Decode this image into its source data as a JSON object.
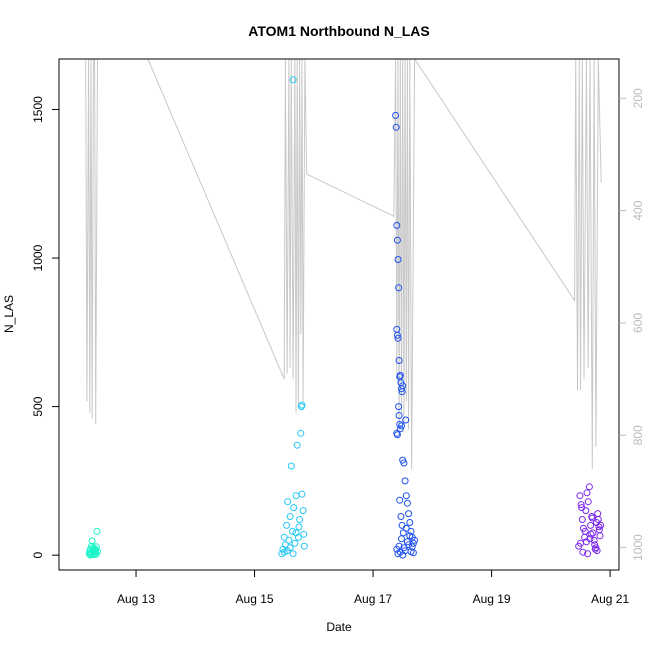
{
  "chart_data": {
    "type": "scatter",
    "title": "ATOM1 Northbound N_LAS",
    "xlabel": "Date",
    "ylabel": "N_LAS",
    "x_ticks": [
      "Aug 13",
      "Aug 15",
      "Aug 17",
      "Aug 19",
      "Aug 21"
    ],
    "x_tick_days": [
      13,
      15,
      17,
      19,
      21
    ],
    "xlim_days": [
      11.7,
      21.15
    ],
    "y_ticks": [
      0,
      500,
      1000,
      1500
    ],
    "ylim": [
      -50,
      1670
    ],
    "y2_ticks": [
      "200",
      "400",
      "600",
      "800",
      "1000"
    ],
    "y2_values": [
      200,
      400,
      600,
      800,
      1000
    ],
    "y2lim": [
      1040,
      130
    ],
    "grid": false,
    "colors": {
      "day12": "#19f5c8",
      "day15": "#25c8f5",
      "day17": "#1e50f0",
      "day20": "#7a28ee",
      "line": "#c8c8c8"
    },
    "clusters": [
      {
        "name": "day12",
        "x_range": [
          12.2,
          12.35
        ],
        "points": [
          [
            12.21,
            5
          ],
          [
            12.22,
            12
          ],
          [
            12.23,
            20
          ],
          [
            12.24,
            8
          ],
          [
            12.25,
            30
          ],
          [
            12.26,
            48
          ],
          [
            12.27,
            15
          ],
          [
            12.28,
            2
          ],
          [
            12.29,
            10
          ],
          [
            12.3,
            22
          ],
          [
            12.31,
            6
          ],
          [
            12.32,
            18
          ],
          [
            12.33,
            3
          ],
          [
            12.34,
            80
          ],
          [
            12.35,
            12
          ],
          [
            12.23,
            0
          ],
          [
            12.27,
            25
          ],
          [
            12.31,
            14
          ],
          [
            12.25,
            4
          ],
          [
            12.33,
            28
          ]
        ]
      },
      {
        "name": "day15",
        "x_range": [
          15.45,
          15.85
        ],
        "points": [
          [
            15.46,
            5
          ],
          [
            15.48,
            20
          ],
          [
            15.5,
            60
          ],
          [
            15.52,
            35
          ],
          [
            15.54,
            100
          ],
          [
            15.56,
            180
          ],
          [
            15.58,
            50
          ],
          [
            15.6,
            130
          ],
          [
            15.62,
            300
          ],
          [
            15.64,
            80
          ],
          [
            15.65,
            1600
          ],
          [
            15.66,
            160
          ],
          [
            15.68,
            40
          ],
          [
            15.7,
            200
          ],
          [
            15.72,
            370
          ],
          [
            15.74,
            60
          ],
          [
            15.76,
            120
          ],
          [
            15.78,
            410
          ],
          [
            15.79,
            500
          ],
          [
            15.8,
            505
          ],
          [
            15.82,
            150
          ],
          [
            15.84,
            30
          ],
          [
            15.5,
            10
          ],
          [
            15.55,
            15
          ],
          [
            15.6,
            25
          ],
          [
            15.65,
            5
          ],
          [
            15.7,
            75
          ],
          [
            15.75,
            95
          ],
          [
            15.8,
            205
          ],
          [
            15.83,
            70
          ]
        ]
      },
      {
        "name": "day17",
        "x_range": [
          17.35,
          17.7
        ],
        "points": [
          [
            17.38,
            1480
          ],
          [
            17.39,
            1440
          ],
          [
            17.4,
            1110
          ],
          [
            17.41,
            1060
          ],
          [
            17.42,
            995
          ],
          [
            17.43,
            900
          ],
          [
            17.4,
            760
          ],
          [
            17.41,
            740
          ],
          [
            17.42,
            730
          ],
          [
            17.44,
            655
          ],
          [
            17.45,
            600
          ],
          [
            17.46,
            605
          ],
          [
            17.47,
            580
          ],
          [
            17.48,
            560
          ],
          [
            17.49,
            550
          ],
          [
            17.5,
            570
          ],
          [
            17.43,
            500
          ],
          [
            17.44,
            470
          ],
          [
            17.45,
            440
          ],
          [
            17.46,
            425
          ],
          [
            17.4,
            410
          ],
          [
            17.41,
            405
          ],
          [
            17.48,
            435
          ],
          [
            17.55,
            455
          ],
          [
            17.5,
            320
          ],
          [
            17.52,
            310
          ],
          [
            17.54,
            250
          ],
          [
            17.56,
            200
          ],
          [
            17.58,
            175
          ],
          [
            17.6,
            140
          ],
          [
            17.62,
            110
          ],
          [
            17.64,
            80
          ],
          [
            17.66,
            60
          ],
          [
            17.68,
            40
          ],
          [
            17.4,
            20
          ],
          [
            17.42,
            5
          ],
          [
            17.44,
            30
          ],
          [
            17.46,
            10
          ],
          [
            17.48,
            55
          ],
          [
            17.5,
            0
          ],
          [
            17.52,
            25
          ],
          [
            17.54,
            15
          ],
          [
            17.56,
            90
          ],
          [
            17.58,
            45
          ],
          [
            17.6,
            35
          ],
          [
            17.62,
            65
          ],
          [
            17.64,
            12
          ],
          [
            17.66,
            28
          ],
          [
            17.68,
            8
          ],
          [
            17.7,
            50
          ],
          [
            17.45,
            185
          ],
          [
            17.47,
            130
          ],
          [
            17.49,
            100
          ],
          [
            17.51,
            75
          ]
        ]
      },
      {
        "name": "day20",
        "x_range": [
          20.45,
          20.85
        ],
        "points": [
          [
            20.47,
            30
          ],
          [
            20.49,
            200
          ],
          [
            20.51,
            170
          ],
          [
            20.53,
            120
          ],
          [
            20.55,
            90
          ],
          [
            20.57,
            60
          ],
          [
            20.59,
            150
          ],
          [
            20.61,
            210
          ],
          [
            20.63,
            180
          ],
          [
            20.65,
            230
          ],
          [
            20.67,
            100
          ],
          [
            20.69,
            130
          ],
          [
            20.71,
            75
          ],
          [
            20.73,
            50
          ],
          [
            20.75,
            20
          ],
          [
            20.77,
            110
          ],
          [
            20.79,
            140
          ],
          [
            20.81,
            95
          ],
          [
            20.83,
            65
          ],
          [
            20.5,
            40
          ],
          [
            20.54,
            10
          ],
          [
            20.58,
            80
          ],
          [
            20.62,
            5
          ],
          [
            20.66,
            55
          ],
          [
            20.7,
            125
          ],
          [
            20.74,
            35
          ],
          [
            20.78,
            15
          ],
          [
            20.82,
            85
          ],
          [
            20.52,
            160
          ],
          [
            20.6,
            45
          ],
          [
            20.68,
            70
          ],
          [
            20.76,
            25
          ],
          [
            20.8,
            120
          ],
          [
            20.84,
            100
          ]
        ]
      }
    ],
    "grey_line_series": {
      "name": "",
      "axis": "right",
      "description_points": [
        [
          12.15,
          130
        ],
        [
          12.17,
          740
        ],
        [
          12.2,
          130
        ],
        [
          12.22,
          760
        ],
        [
          12.24,
          130
        ],
        [
          12.26,
          770
        ],
        [
          12.28,
          130
        ],
        [
          12.3,
          130
        ],
        [
          12.32,
          780
        ],
        [
          12.35,
          130
        ],
        [
          13.2,
          130
        ],
        [
          15.5,
          700
        ],
        [
          15.52,
          130
        ],
        [
          15.55,
          690
        ],
        [
          15.58,
          130
        ],
        [
          15.6,
          680
        ],
        [
          15.62,
          130
        ],
        [
          15.65,
          700
        ],
        [
          15.68,
          130
        ],
        [
          15.7,
          760
        ],
        [
          15.72,
          130
        ],
        [
          15.74,
          750
        ],
        [
          15.76,
          130
        ],
        [
          15.78,
          620
        ],
        [
          15.8,
          130
        ],
        [
          15.82,
          740
        ],
        [
          15.85,
          130
        ],
        [
          15.88,
          335
        ],
        [
          17.35,
          410
        ],
        [
          17.38,
          130
        ],
        [
          17.4,
          700
        ],
        [
          17.42,
          130
        ],
        [
          17.44,
          800
        ],
        [
          17.46,
          130
        ],
        [
          17.48,
          760
        ],
        [
          17.5,
          130
        ],
        [
          17.52,
          780
        ],
        [
          17.54,
          130
        ],
        [
          17.56,
          740
        ],
        [
          17.58,
          130
        ],
        [
          17.6,
          790
        ],
        [
          17.62,
          130
        ],
        [
          17.65,
          860
        ],
        [
          17.7,
          130
        ],
        [
          20.4,
          560
        ],
        [
          20.42,
          130
        ],
        [
          20.45,
          720
        ],
        [
          20.48,
          130
        ],
        [
          20.5,
          720
        ],
        [
          20.53,
          130
        ],
        [
          20.56,
          700
        ],
        [
          20.6,
          130
        ],
        [
          20.63,
          680
        ],
        [
          20.66,
          130
        ],
        [
          20.7,
          860
        ],
        [
          20.73,
          130
        ],
        [
          20.76,
          820
        ],
        [
          20.8,
          130
        ],
        [
          20.85,
          350
        ]
      ]
    }
  }
}
